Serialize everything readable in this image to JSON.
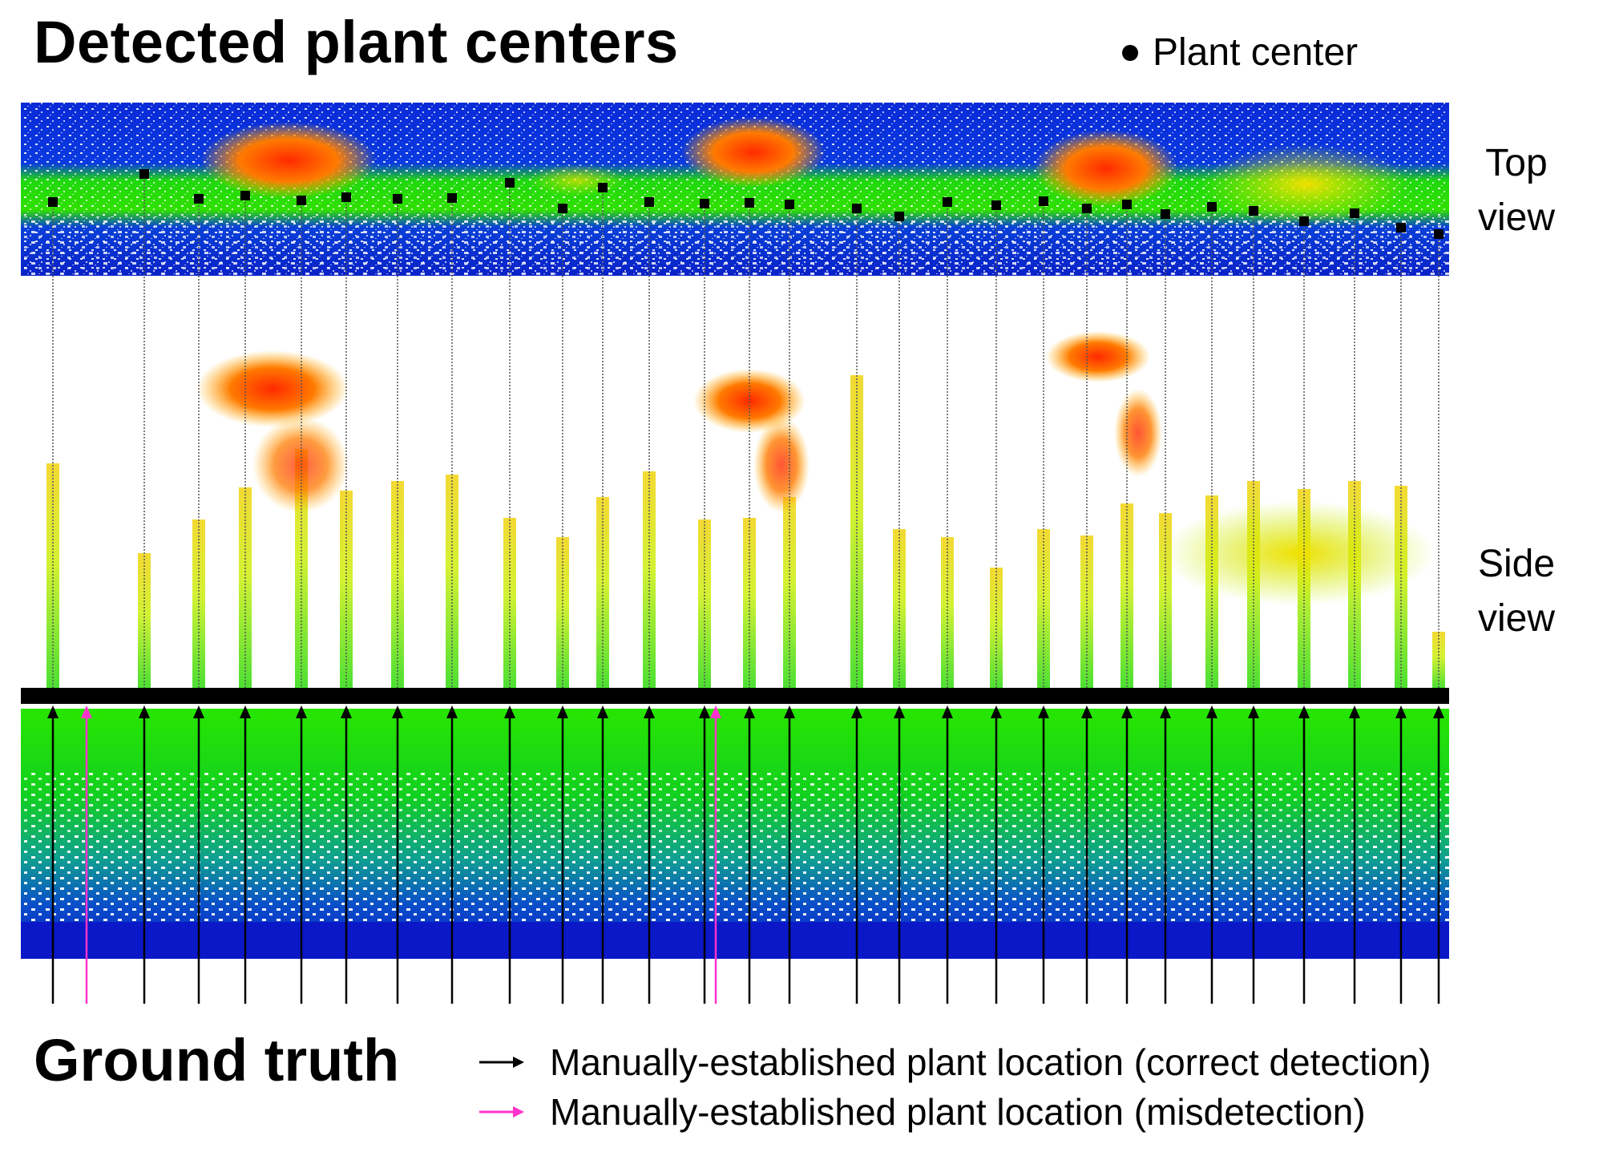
{
  "header": {
    "title": "Detected plant centers",
    "legend_label": "Plant center"
  },
  "panels": {
    "top_view_label_line1": "Top",
    "top_view_label_line2": "view",
    "side_view_label_line1": "Side",
    "side_view_label_line2": "view"
  },
  "footer": {
    "title": "Ground truth",
    "legend": [
      {
        "label": "Manually-established plant location (correct detection)",
        "color": "#000000"
      },
      {
        "label": "Manually-established plant location (misdetection)",
        "color": "#ff33cc"
      }
    ]
  },
  "colors": {
    "background": "#ffffff",
    "ground_blue": "#0a1ec8",
    "canopy_green": "#22e000",
    "canopy_yellow": "#e0e000",
    "canopy_orange": "#ff8c00",
    "canopy_red": "#ff2a00",
    "divider": "#000000",
    "misdetection": "#ff33cc"
  }
}
